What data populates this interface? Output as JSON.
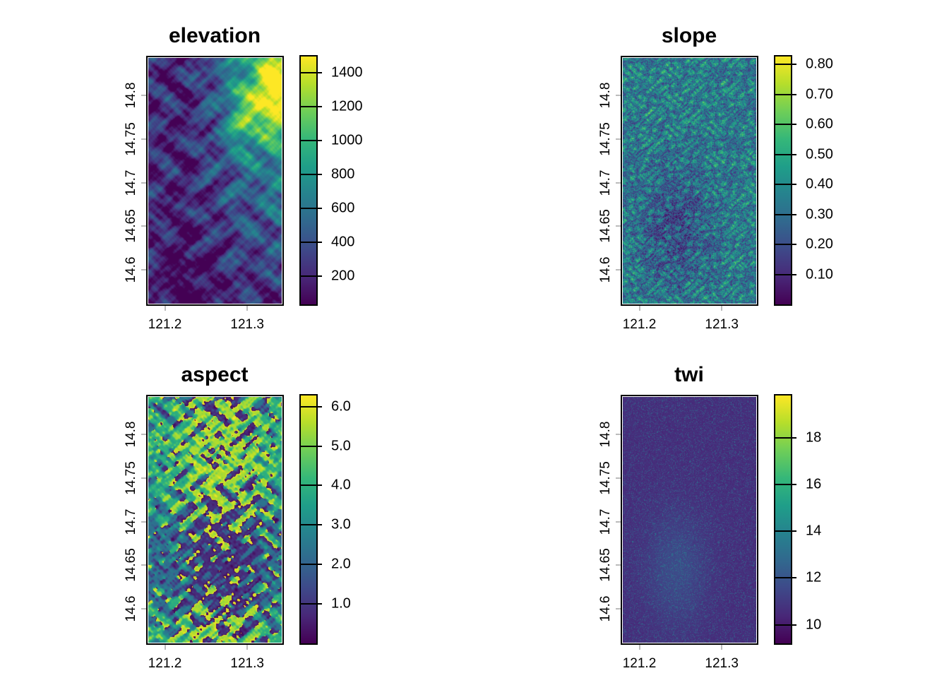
{
  "panels": [
    {
      "title": "elevation",
      "legend": {
        "labels": [
          "200",
          "400",
          "600",
          "800",
          "1000",
          "1200",
          "1400"
        ],
        "values": [
          200,
          400,
          600,
          800,
          1000,
          1200,
          1400
        ],
        "range": [
          34,
          1495
        ]
      },
      "pattern": "elevation"
    },
    {
      "title": "slope",
      "legend": {
        "labels": [
          "0.10",
          "0.20",
          "0.30",
          "0.40",
          "0.50",
          "0.60",
          "0.70",
          "0.80"
        ],
        "values": [
          0.1,
          0.2,
          0.3,
          0.4,
          0.5,
          0.6,
          0.7,
          0.8
        ],
        "range": [
          0.0,
          0.826
        ]
      },
      "pattern": "slope"
    },
    {
      "title": "aspect",
      "legend": {
        "labels": [
          "1.0",
          "2.0",
          "3.0",
          "4.0",
          "5.0",
          "6.0"
        ],
        "values": [
          1,
          2,
          3,
          4,
          5,
          6
        ],
        "range": [
          0,
          6.28
        ]
      },
      "pattern": "aspect"
    },
    {
      "title": "twi",
      "legend": {
        "labels": [
          "10",
          "12",
          "14",
          "16",
          "18"
        ],
        "values": [
          10,
          12,
          14,
          16,
          18
        ],
        "range": [
          9.2,
          19.8
        ]
      },
      "pattern": "twi"
    }
  ],
  "axes": {
    "y_labels": [
      "14.6",
      "14.65",
      "14.7",
      "14.75",
      "14.8"
    ],
    "y_values": [
      14.6,
      14.65,
      14.7,
      14.75,
      14.8
    ],
    "y_range": [
      14.562,
      14.844
    ],
    "x_labels": [
      "121.2",
      "121.3"
    ],
    "x_values": [
      121.2,
      121.3
    ],
    "x_range": [
      121.179,
      121.341
    ]
  },
  "colormap": [
    "#440154",
    "#482878",
    "#3e4989",
    "#31688e",
    "#26828e",
    "#1f9e89",
    "#35b779",
    "#6ece58",
    "#b5de2b",
    "#fde725"
  ]
}
